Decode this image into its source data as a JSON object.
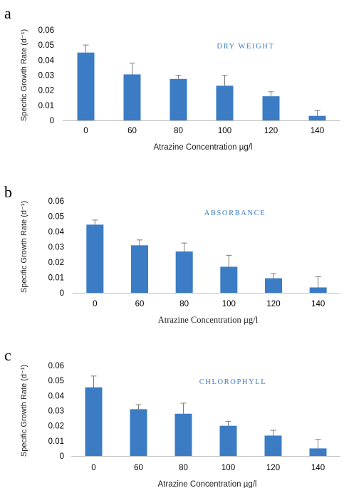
{
  "colors": {
    "bar": "#3b7cc4",
    "error": "#7a7a7a",
    "series_text": "#3b7cc4"
  },
  "chart_data": [
    {
      "panel": "a",
      "type": "bar",
      "title": "DRY WEIGHT",
      "categories": [
        "0",
        "60",
        "80",
        "100",
        "120",
        "140"
      ],
      "values": [
        0.045,
        0.0305,
        0.0275,
        0.023,
        0.016,
        0.003
      ],
      "errors": [
        0.005,
        0.0075,
        0.0025,
        0.007,
        0.003,
        0.0035
      ],
      "xlabel": "Atrazine Concentration µg/l",
      "ylabel": "Specific Growth Rate (d⁻¹)",
      "yticks": [
        "0",
        "0.01",
        "0.02",
        "0.03",
        "0.04",
        "0.05",
        "0.06"
      ],
      "ylim": [
        0,
        0.06
      ],
      "grid": false,
      "legend": "none"
    },
    {
      "panel": "b",
      "type": "bar",
      "title": "ABSORBANCE",
      "categories": [
        "0",
        "60",
        "80",
        "100",
        "120",
        "140"
      ],
      "values": [
        0.0445,
        0.031,
        0.027,
        0.017,
        0.0095,
        0.0035
      ],
      "errors": [
        0.003,
        0.0035,
        0.0055,
        0.0075,
        0.003,
        0.007
      ],
      "xlabel": "Atrazine Concentration µg/l",
      "ylabel": "Specific Growth Rate (d⁻¹)",
      "yticks": [
        "0",
        "0.01",
        "0.02",
        "0.03",
        "0.04",
        "0.05",
        "0.06"
      ],
      "ylim": [
        0,
        0.06
      ],
      "grid": false,
      "legend": "none"
    },
    {
      "panel": "c",
      "type": "bar",
      "title": "CHLOROPHYLL",
      "categories": [
        "0",
        "60",
        "80",
        "100",
        "120",
        "140"
      ],
      "values": [
        0.0455,
        0.031,
        0.028,
        0.02,
        0.0135,
        0.005
      ],
      "errors": [
        0.0075,
        0.003,
        0.007,
        0.003,
        0.0035,
        0.006
      ],
      "xlabel": "Atrazine Concentration µg/l",
      "ylabel": "Specific Growth Rate (d⁻¹)",
      "yticks": [
        "0",
        "0.01",
        "0.02",
        "0.03",
        "0.04",
        "0.05",
        "0.06"
      ],
      "ylim": [
        0,
        0.06
      ],
      "grid": false,
      "legend": "none"
    }
  ]
}
